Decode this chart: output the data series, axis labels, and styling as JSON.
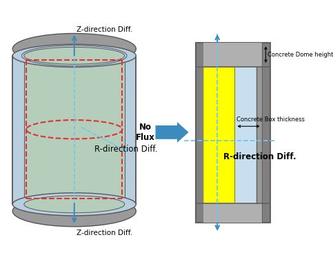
{
  "bg_color": "#ffffff",
  "arrow_color": "#3b8bbf",
  "red_dashed_color": "#e03030",
  "blue_dashed_color": "#70c8e8",
  "gray_dark": "#555555",
  "gray_cap": "#9a9a9a",
  "gray_outer_ring": "#b5b5b5",
  "cylinder_body_color": "#b5cebc",
  "cylinder_outer_color": "#b8cfe0",
  "yellow_color": "#ffff00",
  "light_blue_color": "#c8dff0",
  "concrete_gray": "#808080",
  "concrete_dark": "#606060",
  "text_z_top": "Z-direction Diff.",
  "text_z_bottom": "Z-direction Diff.",
  "text_r": "R-direction Diff.",
  "text_no_flux": "No\nFlux",
  "text_r_right": "R-direction Diff.",
  "text_dome": "Concrete Dome height",
  "text_box": "Concrete Box thickness"
}
